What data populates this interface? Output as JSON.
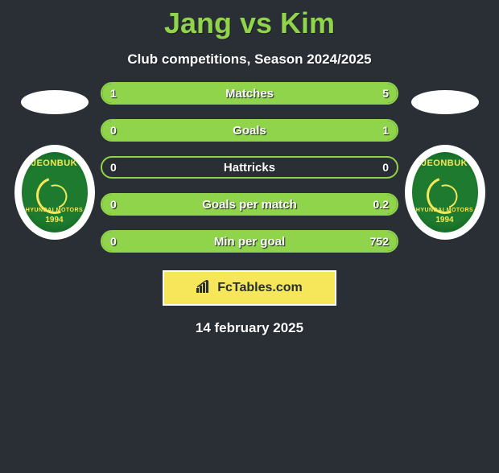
{
  "title": "Jang vs Kim",
  "subtitle": "Club competitions, Season 2024/2025",
  "footer_date": "14 february 2025",
  "brand": {
    "label": "FcTables.com"
  },
  "colors": {
    "background": "#2a2f36",
    "accent": "#8fd44a",
    "tag_bg": "#f5e65a",
    "text": "#ffffff",
    "badge_green": "#1d7a2e",
    "badge_gold": "#f5e65a"
  },
  "club_badge": {
    "top_text": "JEONBUK",
    "bottom_text": "HYUNDAI MOTORS",
    "year": "1994"
  },
  "stats": {
    "rows": [
      {
        "label": "Matches",
        "left_val": "1",
        "right_val": "5",
        "left_fill_pct": 16.7,
        "right_fill_pct": 83.3
      },
      {
        "label": "Goals",
        "left_val": "0",
        "right_val": "1",
        "left_fill_pct": 0,
        "right_fill_pct": 100
      },
      {
        "label": "Hattricks",
        "left_val": "0",
        "right_val": "0",
        "left_fill_pct": 0,
        "right_fill_pct": 0
      },
      {
        "label": "Goals per match",
        "left_val": "0",
        "right_val": "0.2",
        "left_fill_pct": 0,
        "right_fill_pct": 100
      },
      {
        "label": "Min per goal",
        "left_val": "0",
        "right_val": "752",
        "left_fill_pct": 0,
        "right_fill_pct": 100
      }
    ]
  }
}
